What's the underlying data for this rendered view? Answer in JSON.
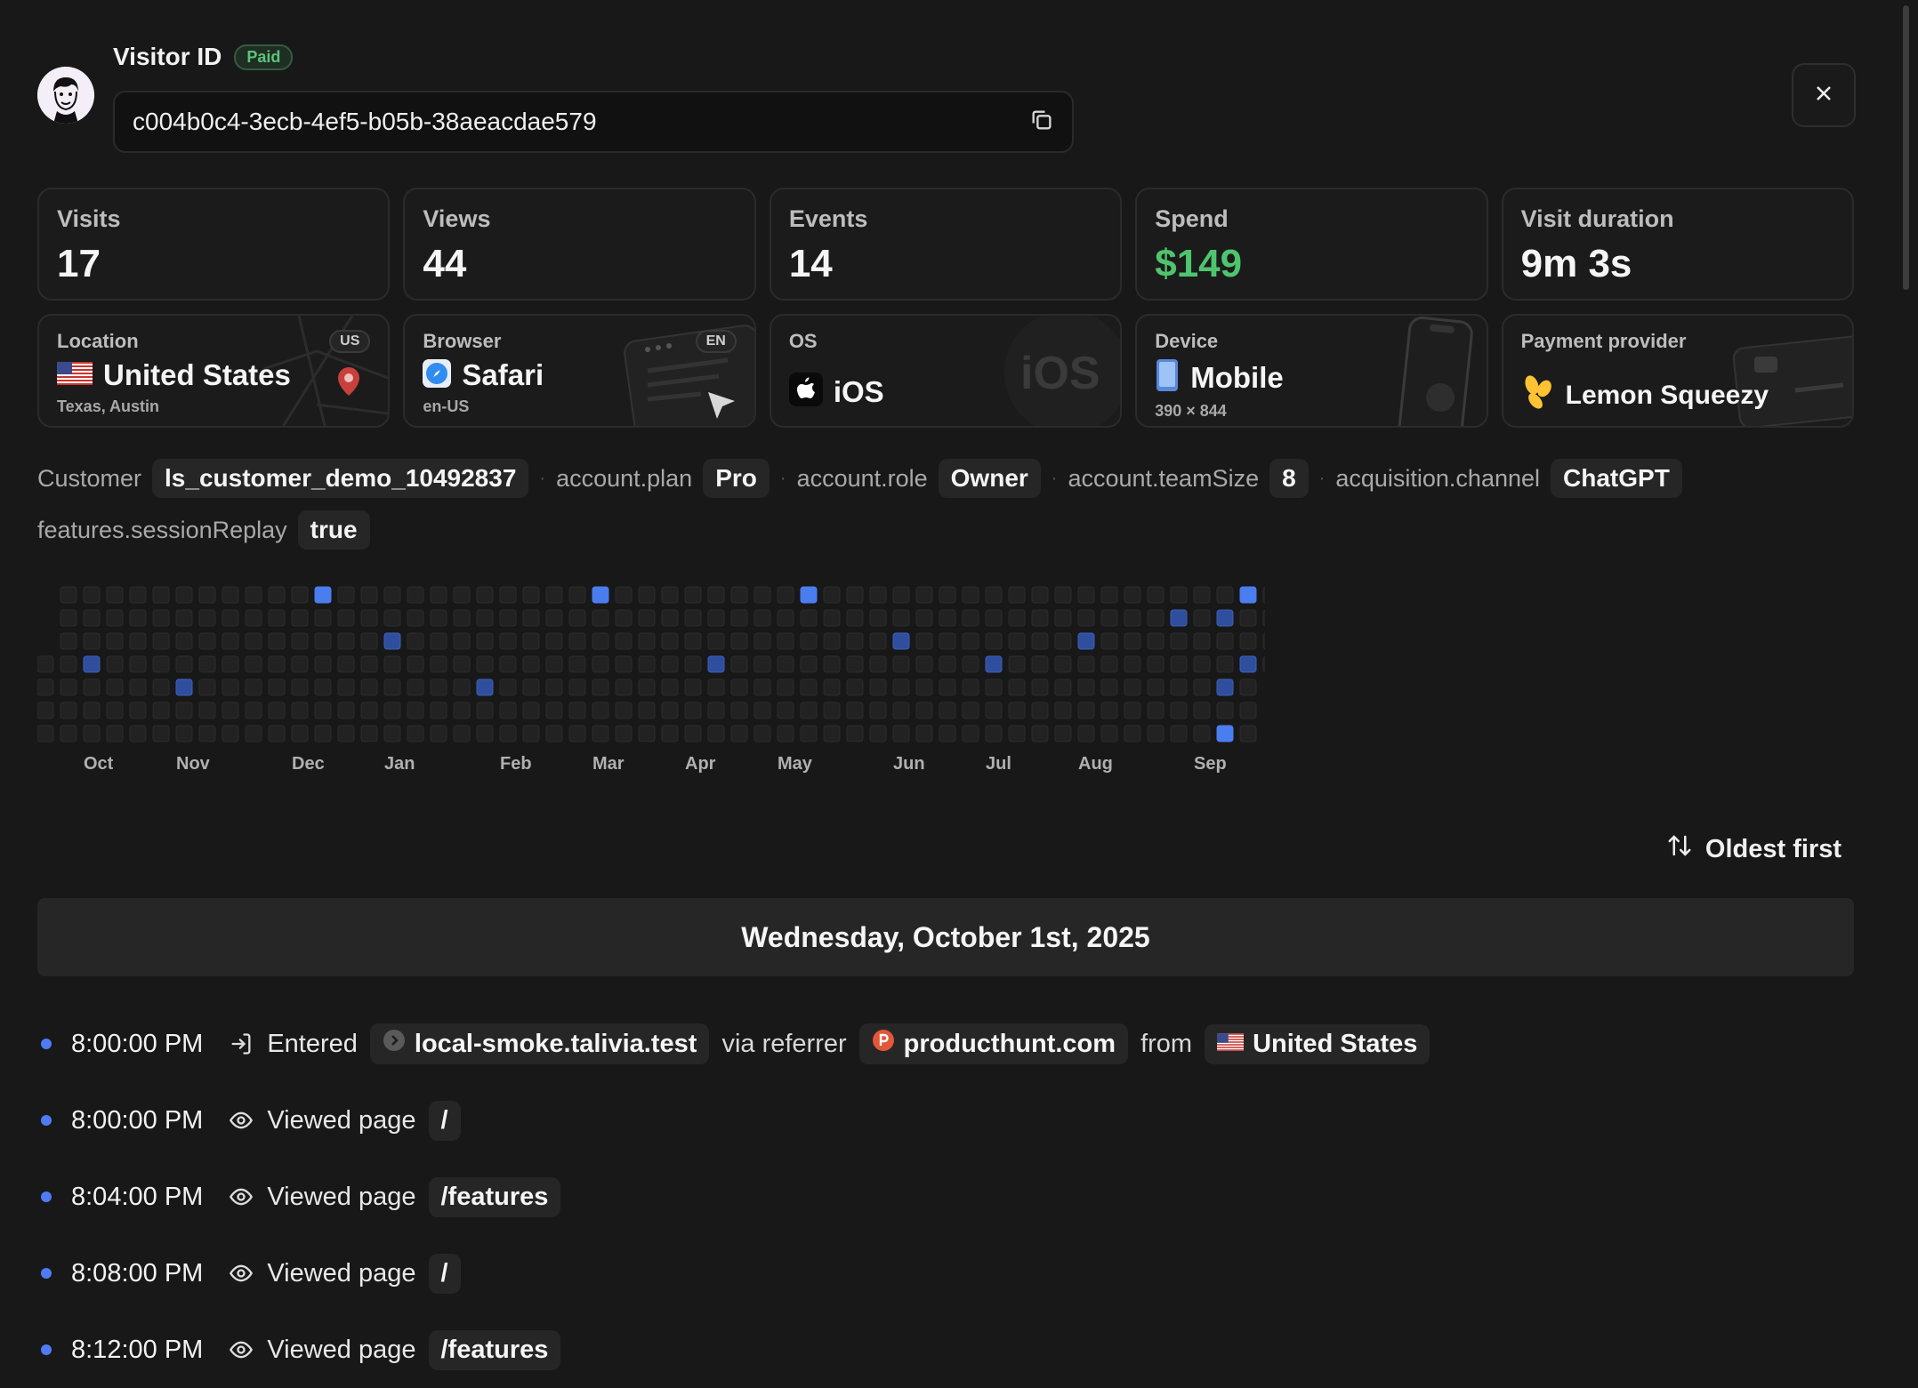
{
  "visitor": {
    "title": "Visitor ID",
    "badge": "Paid",
    "id": "c004b0c4-3ecb-4ef5-b05b-38aeacdae579"
  },
  "stats": [
    {
      "label": "Visits",
      "value": "17"
    },
    {
      "label": "Views",
      "value": "44"
    },
    {
      "label": "Events",
      "value": "14"
    },
    {
      "label": "Spend",
      "value": "$149"
    },
    {
      "label": "Visit duration",
      "value": "9m 3s"
    }
  ],
  "info": {
    "location": {
      "label": "Location",
      "value": "United States",
      "sub": "Texas, Austin",
      "tag": "US",
      "icon": "us-flag-icon"
    },
    "browser": {
      "label": "Browser",
      "value": "Safari",
      "sub": "en-US",
      "tag": "EN",
      "icon": "safari-icon"
    },
    "os": {
      "label": "OS",
      "value": "iOS",
      "watermark": "iOS",
      "icon": "apple-icon"
    },
    "device": {
      "label": "Device",
      "value": "Mobile",
      "sub": "390 × 844",
      "icon": "phone-icon"
    },
    "payment": {
      "label": "Payment provider",
      "value": "Lemon Squeezy",
      "icon": "lemon-squeezy-icon"
    }
  },
  "properties": [
    {
      "key": "Customer",
      "value": "ls_customer_demo_10492837"
    },
    {
      "key": "account.plan",
      "value": "Pro"
    },
    {
      "key": "account.role",
      "value": "Owner"
    },
    {
      "key": "account.teamSize",
      "value": "8"
    },
    {
      "key": "acquisition.channel",
      "value": "ChatGPT"
    },
    {
      "key": "features.sessionReplay",
      "value": "true"
    }
  ],
  "heatmap": {
    "months": [
      "Oct",
      "Nov",
      "Dec",
      "Jan",
      "Feb",
      "Mar",
      "Apr",
      "May",
      "Jun",
      "Jul",
      "Aug",
      "Sep"
    ],
    "active": [
      [
        12,
        0
      ],
      [
        24,
        0
      ],
      [
        33,
        0
      ],
      [
        52,
        0
      ],
      [
        49,
        1
      ],
      [
        51,
        1
      ],
      [
        15,
        2
      ],
      [
        37,
        2
      ],
      [
        45,
        2
      ],
      [
        2,
        3
      ],
      [
        29,
        3
      ],
      [
        41,
        3
      ],
      [
        52,
        3
      ],
      [
        6,
        4
      ],
      [
        19,
        4
      ],
      [
        51,
        4
      ],
      [
        51,
        6
      ]
    ],
    "bright": [
      [
        12,
        0
      ],
      [
        24,
        0
      ],
      [
        33,
        0
      ],
      [
        52,
        0
      ],
      [
        51,
        6
      ]
    ],
    "colors": {
      "empty": "#222222",
      "active": "#2f4f9e",
      "bright": "#4a7dee"
    }
  },
  "sort_label": "Oldest first",
  "day_header": "Wednesday, October 1st, 2025",
  "events": [
    {
      "time": "8:00:00 PM",
      "icon": "enter-icon",
      "action": "Entered",
      "host": "local-smoke.talivia.test",
      "via": "via referrer",
      "referrer": "producthunt.com",
      "from": "from",
      "country": "United States"
    },
    {
      "time": "8:00:00 PM",
      "icon": "eye-icon",
      "action": "Viewed page",
      "path": "/"
    },
    {
      "time": "8:04:00 PM",
      "icon": "eye-icon",
      "action": "Viewed page",
      "path": "/features"
    },
    {
      "time": "8:08:00 PM",
      "icon": "eye-icon",
      "action": "Viewed page",
      "path": "/"
    },
    {
      "time": "8:12:00 PM",
      "icon": "eye-icon",
      "action": "Viewed page",
      "path": "/features"
    }
  ]
}
